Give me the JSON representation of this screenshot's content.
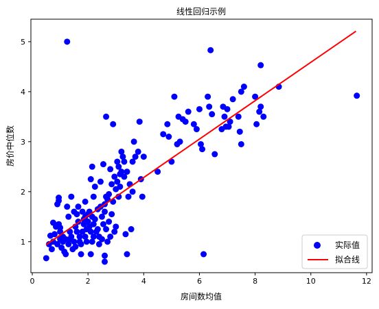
{
  "chart_data": {
    "type": "scatter",
    "title": "线性回归示例",
    "xlabel": "房间数均值",
    "ylabel": "房价中位数",
    "xlim": [
      -0.05,
      12.2
    ],
    "ylim": [
      0.38,
      5.45
    ],
    "xticks": [
      0,
      2,
      4,
      6,
      8,
      10,
      12
    ],
    "yticks": [
      1,
      2,
      3,
      4,
      5
    ],
    "grid": false,
    "legend_position": "bottom-right",
    "series": [
      {
        "name": "实际值",
        "kind": "scatter",
        "color": "#0000ff",
        "points": [
          [
            0.5,
            0.67
          ],
          [
            0.6,
            0.95
          ],
          [
            0.65,
            1.12
          ],
          [
            0.7,
            0.85
          ],
          [
            0.75,
            1.0
          ],
          [
            0.75,
            1.38
          ],
          [
            0.8,
            1.15
          ],
          [
            0.85,
            1.3
          ],
          [
            0.9,
            0.95
          ],
          [
            0.9,
            1.75
          ],
          [
            0.95,
            1.82
          ],
          [
            0.95,
            1.88
          ],
          [
            0.95,
            1.35
          ],
          [
            1.0,
            1.05
          ],
          [
            1.0,
            1.2
          ],
          [
            1.0,
            1.28
          ],
          [
            1.05,
            0.88
          ],
          [
            1.1,
            1.1
          ],
          [
            1.1,
            1.0
          ],
          [
            1.15,
            0.8
          ],
          [
            1.2,
            1.05
          ],
          [
            1.2,
            0.75
          ],
          [
            1.25,
            5.0
          ],
          [
            1.25,
            1.7
          ],
          [
            1.3,
            1.5
          ],
          [
            1.3,
            0.95
          ],
          [
            1.35,
            1.2
          ],
          [
            1.35,
            1.05
          ],
          [
            1.4,
            1.1
          ],
          [
            1.4,
            1.9
          ],
          [
            1.45,
            0.85
          ],
          [
            1.5,
            1.0
          ],
          [
            1.5,
            1.6
          ],
          [
            1.55,
            1.3
          ],
          [
            1.55,
            0.9
          ],
          [
            1.6,
            1.2
          ],
          [
            1.6,
            1.55
          ],
          [
            1.65,
            1.4
          ],
          [
            1.65,
            1.7
          ],
          [
            1.7,
            1.0
          ],
          [
            1.7,
            1.1
          ],
          [
            1.75,
            0.95
          ],
          [
            1.75,
            0.75
          ],
          [
            1.8,
            1.2
          ],
          [
            1.8,
            1.6
          ],
          [
            1.85,
            1.35
          ],
          [
            1.85,
            1.45
          ],
          [
            1.9,
            1.1
          ],
          [
            1.9,
            1.5
          ],
          [
            1.9,
            1.8
          ],
          [
            1.95,
            1.0
          ],
          [
            1.95,
            1.25
          ],
          [
            2.0,
            1.4
          ],
          [
            2.0,
            1.55
          ],
          [
            2.05,
            1.3
          ],
          [
            2.05,
            1.6
          ],
          [
            2.1,
            0.75
          ],
          [
            2.1,
            1.2
          ],
          [
            2.1,
            2.25
          ],
          [
            2.15,
            1.0
          ],
          [
            2.15,
            1.5
          ],
          [
            2.15,
            2.5
          ],
          [
            2.2,
            1.35
          ],
          [
            2.2,
            1.9
          ],
          [
            2.2,
            1.1
          ],
          [
            2.25,
            1.45
          ],
          [
            2.25,
            2.1
          ],
          [
            2.3,
            1.2
          ],
          [
            2.35,
            1.25
          ],
          [
            2.35,
            1.65
          ],
          [
            2.4,
            0.95
          ],
          [
            2.4,
            1.1
          ],
          [
            2.45,
            1.7
          ],
          [
            2.45,
            2.2
          ],
          [
            2.5,
            1.05
          ],
          [
            2.5,
            1.5
          ],
          [
            2.55,
            1.35
          ],
          [
            2.55,
            2.55
          ],
          [
            2.6,
            0.6
          ],
          [
            2.6,
            0.72
          ],
          [
            2.6,
            1.75
          ],
          [
            2.6,
            1.6
          ],
          [
            2.65,
            1.25
          ],
          [
            2.65,
            1.9
          ],
          [
            2.65,
            3.5
          ],
          [
            2.7,
            1.85
          ],
          [
            2.7,
            1.0
          ],
          [
            2.75,
            1.95
          ],
          [
            2.75,
            1.4
          ],
          [
            2.8,
            2.45
          ],
          [
            2.8,
            1.1
          ],
          [
            2.85,
            2.15
          ],
          [
            2.85,
            1.55
          ],
          [
            2.9,
            1.8
          ],
          [
            2.9,
            3.35
          ],
          [
            2.95,
            1.2
          ],
          [
            2.95,
            2.3
          ],
          [
            3.0,
            2.05
          ],
          [
            3.0,
            1.3
          ],
          [
            3.05,
            2.2
          ],
          [
            3.05,
            2.6
          ],
          [
            3.1,
            1.9
          ],
          [
            3.1,
            2.5
          ],
          [
            3.15,
            2.35
          ],
          [
            3.15,
            2.1
          ],
          [
            3.2,
            2.4
          ],
          [
            3.2,
            2.8
          ],
          [
            3.25,
            2.7
          ],
          [
            3.3,
            2.6
          ],
          [
            3.3,
            2.3
          ],
          [
            3.35,
            1.15
          ],
          [
            3.4,
            0.75
          ],
          [
            3.4,
            2.4
          ],
          [
            3.45,
            1.9
          ],
          [
            3.5,
            2.15
          ],
          [
            3.55,
            1.25
          ],
          [
            3.6,
            2.0
          ],
          [
            3.6,
            2.6
          ],
          [
            3.65,
            3.0
          ],
          [
            3.7,
            2.7
          ],
          [
            3.8,
            2.8
          ],
          [
            3.85,
            3.4
          ],
          [
            3.9,
            2.25
          ],
          [
            3.95,
            1.9
          ],
          [
            4.0,
            2.7
          ],
          [
            4.5,
            2.4
          ],
          [
            4.7,
            3.15
          ],
          [
            4.85,
            3.35
          ],
          [
            4.9,
            3.1
          ],
          [
            5.0,
            2.6
          ],
          [
            5.1,
            3.9
          ],
          [
            5.2,
            2.95
          ],
          [
            5.25,
            3.5
          ],
          [
            5.3,
            3.0
          ],
          [
            5.4,
            3.45
          ],
          [
            5.5,
            3.4
          ],
          [
            5.6,
            3.6
          ],
          [
            5.8,
            3.35
          ],
          [
            5.9,
            3.25
          ],
          [
            6.0,
            3.65
          ],
          [
            6.05,
            2.95
          ],
          [
            6.1,
            2.85
          ],
          [
            6.15,
            0.75
          ],
          [
            6.3,
            3.9
          ],
          [
            6.35,
            3.7
          ],
          [
            6.4,
            4.83
          ],
          [
            6.45,
            3.55
          ],
          [
            6.55,
            2.75
          ],
          [
            6.8,
            3.25
          ],
          [
            6.85,
            3.7
          ],
          [
            6.9,
            3.5
          ],
          [
            6.95,
            3.3
          ],
          [
            7.0,
            3.65
          ],
          [
            7.05,
            3.3
          ],
          [
            7.1,
            3.4
          ],
          [
            7.2,
            3.85
          ],
          [
            7.4,
            3.5
          ],
          [
            7.45,
            3.2
          ],
          [
            7.5,
            4.0
          ],
          [
            7.5,
            2.95
          ],
          [
            7.6,
            4.1
          ],
          [
            8.0,
            3.9
          ],
          [
            8.05,
            3.35
          ],
          [
            8.15,
            3.6
          ],
          [
            8.2,
            3.7
          ],
          [
            8.2,
            4.53
          ],
          [
            8.3,
            3.5
          ],
          [
            8.85,
            4.1
          ],
          [
            11.65,
            3.92
          ]
        ]
      },
      {
        "name": "拟合线",
        "kind": "line",
        "color": "#ff0000",
        "points": [
          [
            0.5,
            0.94
          ],
          [
            11.62,
            5.21
          ]
        ]
      }
    ]
  }
}
